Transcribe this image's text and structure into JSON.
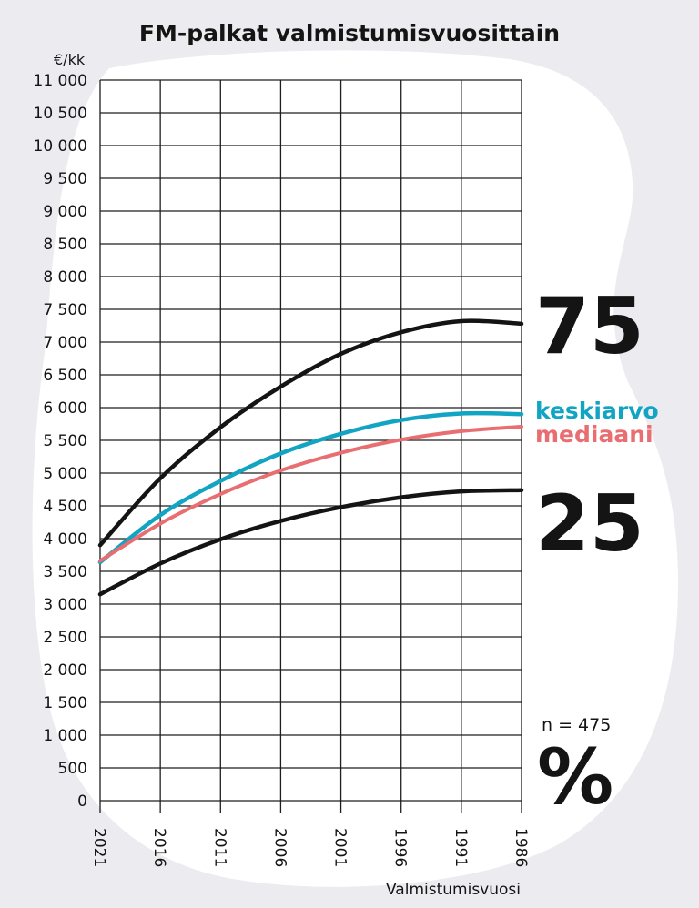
{
  "title": "FM-palkat valmistumisvuosittain",
  "y_unit": "€/kk",
  "x_axis_label": "Valmistumisvuosi",
  "n_label": "n = 475",
  "percent_symbol": "%",
  "colors": {
    "background": "#ebebf0",
    "blob": "#ffffff",
    "grid": "#1e1e1e",
    "percentile_line": "#141414",
    "mean": "#11a4c3",
    "median": "#e86e72"
  },
  "chart_data": {
    "type": "line",
    "title": "FM-palkat valmistumisvuosittain",
    "xlabel": "Valmistumisvuosi",
    "ylabel": "€/kk",
    "x_ticks": [
      "2021",
      "2016",
      "2011",
      "2006",
      "2001",
      "1996",
      "1991",
      "1986"
    ],
    "y_ticks": [
      "0",
      "500",
      "1 000",
      "1 500",
      "2 000",
      "2 500",
      "3 000",
      "3 500",
      "4 000",
      "4 500",
      "5 000",
      "5 500",
      "6 000",
      "6 500",
      "7 000",
      "7 500",
      "8 000",
      "8 500",
      "9 000",
      "9 500",
      "10 000",
      "10 500",
      "11 000"
    ],
    "ylim": [
      0,
      11000
    ],
    "xlim": [
      2021,
      1986
    ],
    "x_reversed": true,
    "grid": true,
    "legend_placement": "right of plot, labels at line ends",
    "series": [
      {
        "name": "75",
        "key": "p75",
        "x": [
          2021,
          2016,
          2011,
          2006,
          2001,
          1996,
          1991,
          1986
        ],
        "values": [
          3900,
          4920,
          5700,
          6320,
          6820,
          7150,
          7320,
          7280
        ]
      },
      {
        "name": "keskiarvo",
        "key": "mean",
        "x": [
          2021,
          2016,
          2011,
          2006,
          2001,
          1996,
          1991,
          1986
        ],
        "values": [
          3640,
          4360,
          4880,
          5300,
          5600,
          5810,
          5910,
          5900
        ]
      },
      {
        "name": "mediaani",
        "key": "median",
        "x": [
          2021,
          2016,
          2011,
          2006,
          2001,
          1996,
          1991,
          1986
        ],
        "values": [
          3660,
          4230,
          4680,
          5040,
          5310,
          5510,
          5640,
          5710
        ]
      },
      {
        "name": "25",
        "key": "p25",
        "x": [
          2021,
          2016,
          2011,
          2006,
          2001,
          1996,
          1991,
          1986
        ],
        "values": [
          3150,
          3620,
          3990,
          4270,
          4480,
          4630,
          4720,
          4740
        ]
      }
    ]
  }
}
